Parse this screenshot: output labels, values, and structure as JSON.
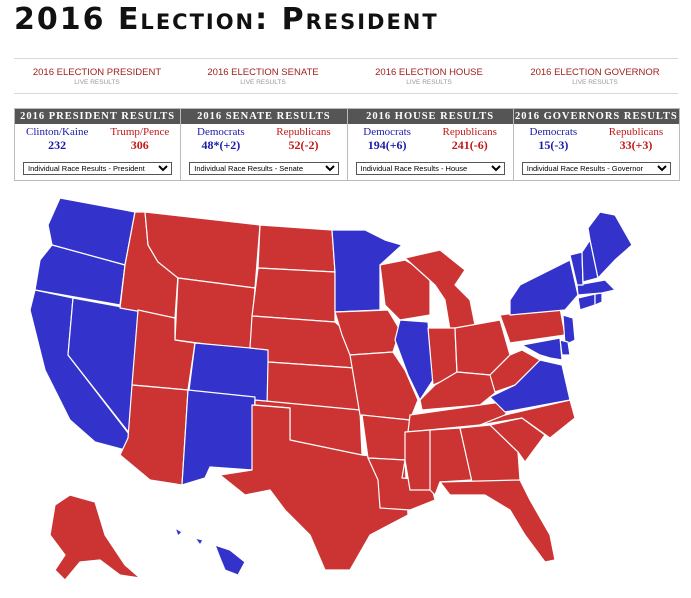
{
  "title": "2016 Election: President",
  "nav": [
    {
      "label": "2016 ELECTION PRESIDENT",
      "sub": "LIVE RESULTS"
    },
    {
      "label": "2016 ELECTION SENATE",
      "sub": "LIVE RESULTS"
    },
    {
      "label": "2016 ELECTION HOUSE",
      "sub": "LIVE RESULTS"
    },
    {
      "label": "2016 ELECTION GOVERNOR",
      "sub": "LIVE RESULTS"
    }
  ],
  "panels": [
    {
      "header": "2016 PRESIDENT RESULTS",
      "dem_name": "Clinton/Kaine",
      "dem_value": "232",
      "rep_name": "Trump/Pence",
      "rep_value": "306",
      "select": "Individual Race Results - President"
    },
    {
      "header": "2016 SENATE RESULTS",
      "dem_name": "Democrats",
      "dem_value": "48*(+2)",
      "rep_name": "Republicans",
      "rep_value": "52(-2)",
      "select": "Individual Race Results - Senate"
    },
    {
      "header": "2016 HOUSE RESULTS",
      "dem_name": "Democrats",
      "dem_value": "194(+6)",
      "rep_name": "Republicans",
      "rep_value": "241(-6)",
      "select": "Individual Race Results - House"
    },
    {
      "header": "2016 GOVERNORS RESULTS",
      "dem_name": "Democrats",
      "dem_value": "15(-3)",
      "rep_name": "Republicans",
      "rep_value": "33(+3)",
      "select": "Individual Race Results - Governor"
    }
  ],
  "map": {
    "colors": {
      "dem": "#3333cc",
      "rep": "#cc3333"
    },
    "states": {
      "WA": "dem",
      "OR": "dem",
      "CA": "dem",
      "NV": "dem",
      "ID": "rep",
      "MT": "rep",
      "WY": "rep",
      "UT": "rep",
      "AZ": "rep",
      "CO": "dem",
      "NM": "dem",
      "ND": "rep",
      "SD": "rep",
      "NE": "rep",
      "KS": "rep",
      "OK": "rep",
      "TX": "rep",
      "MN": "dem",
      "IA": "rep",
      "MO": "rep",
      "AR": "rep",
      "LA": "rep",
      "WI": "rep",
      "IL": "dem",
      "MI": "rep",
      "IN": "rep",
      "OH": "rep",
      "KY": "rep",
      "TN": "rep",
      "MS": "rep",
      "AL": "rep",
      "GA": "rep",
      "FL": "rep",
      "SC": "rep",
      "NC": "rep",
      "VA": "dem",
      "WV": "rep",
      "PA": "rep",
      "NY": "dem",
      "ME": "dem",
      "NH": "dem",
      "VT": "dem",
      "MA": "dem",
      "CT": "dem",
      "RI": "dem",
      "NJ": "dem",
      "DE": "dem",
      "MD": "dem",
      "AK": "rep",
      "HI": "dem"
    }
  }
}
